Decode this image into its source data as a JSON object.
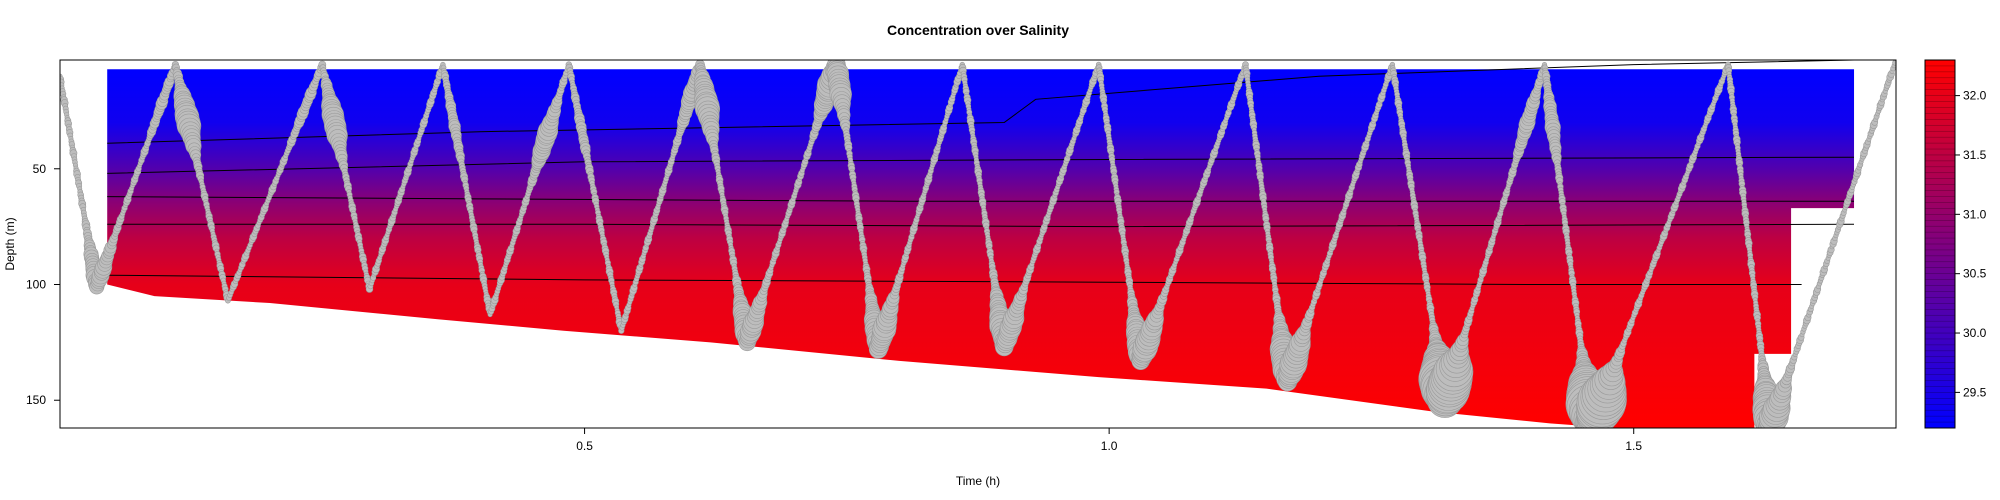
{
  "chart_data": {
    "type": "heatmap",
    "title": "Concentration over Salinity",
    "xlabel": "Time (h)",
    "ylabel": "Depth (m)",
    "xlim": [
      0.0,
      1.75
    ],
    "ylim": [
      162,
      3
    ],
    "x_ticks": [
      {
        "value": 0.5,
        "label": "0.5"
      },
      {
        "value": 1.0,
        "label": "1.0"
      },
      {
        "value": 1.5,
        "label": "1.5"
      }
    ],
    "y_ticks": [
      {
        "value": 50,
        "label": "50"
      },
      {
        "value": 100,
        "label": "100"
      },
      {
        "value": 150,
        "label": "150"
      }
    ],
    "colorbar": {
      "min": 29.2,
      "max": 32.3,
      "low_color": "#0000ff",
      "high_color": "#ff0000",
      "ticks": [
        {
          "value": 29.5,
          "label": "29.5"
        },
        {
          "value": 30.0,
          "label": "30.0"
        },
        {
          "value": 30.5,
          "label": "30.5"
        },
        {
          "value": 31.0,
          "label": "31.0"
        },
        {
          "value": 31.5,
          "label": "31.5"
        },
        {
          "value": 32.0,
          "label": "32.0"
        }
      ]
    },
    "salinity_profile": [
      {
        "depth": 7,
        "salinity": 29.2
      },
      {
        "depth": 30,
        "salinity": 29.4
      },
      {
        "depth": 50,
        "salinity": 30.2
      },
      {
        "depth": 65,
        "salinity": 30.9
      },
      {
        "depth": 80,
        "salinity": 31.5
      },
      {
        "depth": 100,
        "salinity": 32.0
      },
      {
        "depth": 160,
        "salinity": 32.3
      }
    ],
    "bottom_boundary": [
      {
        "x": 0.045,
        "depth": 100
      },
      {
        "x": 0.09,
        "depth": 105
      },
      {
        "x": 0.2,
        "depth": 108
      },
      {
        "x": 0.36,
        "depth": 115
      },
      {
        "x": 0.48,
        "depth": 120
      },
      {
        "x": 0.62,
        "depth": 125
      },
      {
        "x": 0.8,
        "depth": 133
      },
      {
        "x": 0.99,
        "depth": 140
      },
      {
        "x": 1.15,
        "depth": 145
      },
      {
        "x": 1.31,
        "depth": 155
      },
      {
        "x": 1.42,
        "depth": 160
      },
      {
        "x": 1.48,
        "depth": 162
      },
      {
        "x": 1.615,
        "depth": 162
      }
    ],
    "grid_extent": {
      "x_start": 0.045,
      "x_end": 1.71,
      "top_depth": 7,
      "step_x": 1.65,
      "step_depth": 130,
      "right_bottom_depth": 67
    },
    "isolines": [
      {
        "x": [
          0.045,
          0.4,
          0.9,
          0.93,
          1.2,
          1.5,
          1.71
        ],
        "depth": [
          39,
          34,
          30,
          20,
          10,
          5,
          3
        ]
      },
      {
        "x": [
          0.045,
          0.5,
          1.0,
          1.71
        ],
        "depth": [
          52,
          47,
          46,
          45
        ]
      },
      {
        "x": [
          0.045,
          0.4,
          0.8,
          1.2,
          1.71
        ],
        "depth": [
          62,
          63,
          64,
          64,
          64
        ]
      },
      {
        "x": [
          0.045,
          0.5,
          1.0,
          1.71
        ],
        "depth": [
          74,
          74,
          75,
          74
        ]
      },
      {
        "x": [
          0.045,
          0.5,
          1.0,
          1.4,
          1.66
        ],
        "depth": [
          96,
          98,
          99,
          100,
          100
        ]
      }
    ],
    "track_vertices": [
      {
        "x": 0.0,
        "depth": 10
      },
      {
        "x": 0.035,
        "depth": 101
      },
      {
        "x": 0.11,
        "depth": 5
      },
      {
        "x": 0.16,
        "depth": 107
      },
      {
        "x": 0.25,
        "depth": 5
      },
      {
        "x": 0.295,
        "depth": 102
      },
      {
        "x": 0.365,
        "depth": 5
      },
      {
        "x": 0.41,
        "depth": 113
      },
      {
        "x": 0.485,
        "depth": 5
      },
      {
        "x": 0.535,
        "depth": 120
      },
      {
        "x": 0.61,
        "depth": 5
      },
      {
        "x": 0.655,
        "depth": 125
      },
      {
        "x": 0.74,
        "depth": 5
      },
      {
        "x": 0.78,
        "depth": 128
      },
      {
        "x": 0.86,
        "depth": 5
      },
      {
        "x": 0.9,
        "depth": 127
      },
      {
        "x": 0.99,
        "depth": 5
      },
      {
        "x": 1.03,
        "depth": 133
      },
      {
        "x": 1.13,
        "depth": 5
      },
      {
        "x": 1.17,
        "depth": 142
      },
      {
        "x": 1.27,
        "depth": 5
      },
      {
        "x": 1.32,
        "depth": 150
      },
      {
        "x": 1.415,
        "depth": 5
      },
      {
        "x": 1.46,
        "depth": 162
      },
      {
        "x": 1.59,
        "depth": 5
      },
      {
        "x": 1.63,
        "depth": 162
      },
      {
        "x": 1.75,
        "depth": 3
      }
    ],
    "concentration_hotspots": [
      {
        "x": 0.125,
        "depth": 28,
        "value": 1.0
      },
      {
        "x": 0.26,
        "depth": 30,
        "value": 0.9
      },
      {
        "x": 0.4,
        "depth": 28,
        "value": 0.7
      },
      {
        "x": 0.47,
        "depth": 38,
        "value": 0.8
      },
      {
        "x": 0.62,
        "depth": 22,
        "value": 1.0
      },
      {
        "x": 0.735,
        "depth": 14,
        "value": 1.0
      },
      {
        "x": 0.655,
        "depth": 118,
        "value": 0.8
      },
      {
        "x": 0.785,
        "depth": 120,
        "value": 0.9
      },
      {
        "x": 0.9,
        "depth": 118,
        "value": 0.9
      },
      {
        "x": 1.035,
        "depth": 125,
        "value": 1.0
      },
      {
        "x": 1.17,
        "depth": 132,
        "value": 1.2
      },
      {
        "x": 1.32,
        "depth": 142,
        "value": 2.2
      },
      {
        "x": 1.465,
        "depth": 150,
        "value": 2.4
      },
      {
        "x": 1.625,
        "depth": 155,
        "value": 1.4
      },
      {
        "x": 1.41,
        "depth": 32,
        "value": 0.6
      },
      {
        "x": 0.035,
        "depth": 95,
        "value": 0.6
      }
    ],
    "colors": {
      "track_marker": "#bdbdbd",
      "isoline": "#000000",
      "frame": "#000000"
    },
    "grid": false,
    "legend": "colorbar-right"
  }
}
